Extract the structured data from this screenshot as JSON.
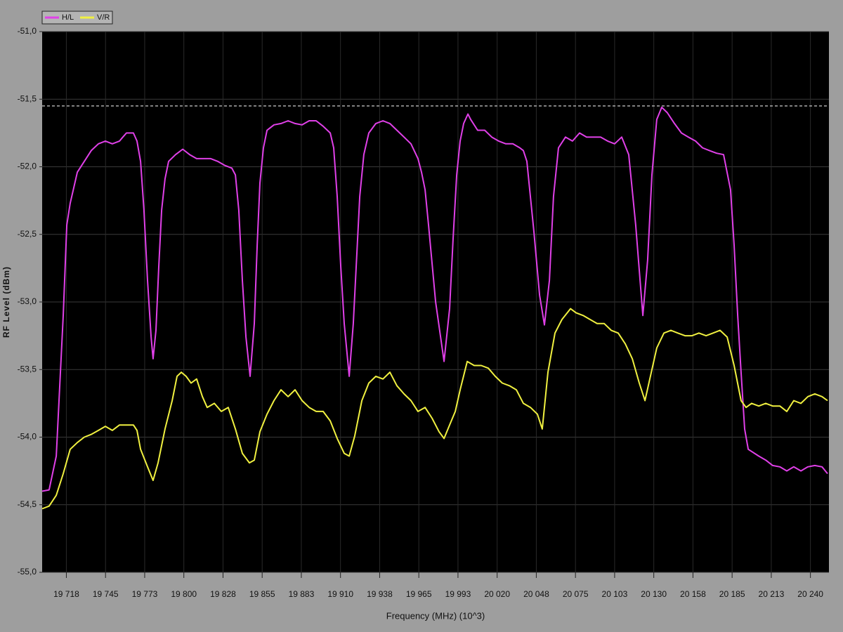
{
  "chart_data": {
    "type": "line",
    "x_label": "Frequency (MHz) (10^3)",
    "y_label": "RF Level (dBm)",
    "xlim": [
      19700.5,
      20253
    ],
    "ylim": [
      -55,
      -51
    ],
    "xticks": [
      {
        "value": 19717.5,
        "label": "19 718"
      },
      {
        "value": 19745,
        "label": "19 745"
      },
      {
        "value": 19772.5,
        "label": "19 773"
      },
      {
        "value": 19800,
        "label": "19 800"
      },
      {
        "value": 19827.5,
        "label": "19 828"
      },
      {
        "value": 19855,
        "label": "19 855"
      },
      {
        "value": 19882.5,
        "label": "19 883"
      },
      {
        "value": 19910,
        "label": "19 910"
      },
      {
        "value": 19937.5,
        "label": "19 938"
      },
      {
        "value": 19965,
        "label": "19 965"
      },
      {
        "value": 19992.5,
        "label": "19 993"
      },
      {
        "value": 20020,
        "label": "20 020"
      },
      {
        "value": 20047.5,
        "label": "20 048"
      },
      {
        "value": 20075,
        "label": "20 075"
      },
      {
        "value": 20102.5,
        "label": "20 103"
      },
      {
        "value": 20130,
        "label": "20 130"
      },
      {
        "value": 20157.5,
        "label": "20 158"
      },
      {
        "value": 20185,
        "label": "20 185"
      },
      {
        "value": 20212.5,
        "label": "20 213"
      },
      {
        "value": 20240,
        "label": "20 240"
      }
    ],
    "yticks": [
      {
        "value": -51,
        "label": "-51,0"
      },
      {
        "value": -51.5,
        "label": "-51,5"
      },
      {
        "value": -52,
        "label": "-52,0"
      },
      {
        "value": -52.5,
        "label": "-52,5"
      },
      {
        "value": -53,
        "label": "-53,0"
      },
      {
        "value": -53.5,
        "label": "-53,5"
      },
      {
        "value": -54,
        "label": "-54,0"
      },
      {
        "value": -54.5,
        "label": "-54,5"
      },
      {
        "value": -55,
        "label": "-55,0"
      }
    ],
    "grid": true,
    "reference_line": -51.55,
    "series": [
      {
        "name": "H/L",
        "color": "#e040e8",
        "x": [
          19700.5,
          19705.4,
          19710.4,
          19715.3,
          19717.8,
          19720.2,
          19725.2,
          19730.1,
          19735.0,
          19740.0,
          19744.9,
          19749.8,
          19754.8,
          19757.2,
          19759.7,
          19764.6,
          19767.1,
          19769.6,
          19772.0,
          19774.5,
          19777.0,
          19778.4,
          19780.4,
          19782.4,
          19784.4,
          19786.8,
          19789.3,
          19794.2,
          19799.2,
          19804.1,
          19809.0,
          19814.0,
          19818.9,
          19823.8,
          19828.8,
          19833.7,
          19836.2,
          19838.6,
          19841.1,
          19843.6,
          19846.5,
          19849.5,
          19851.5,
          19853.4,
          19855.9,
          19858.4,
          19863.3,
          19868.2,
          19873.2,
          19878.1,
          19883.0,
          19888.0,
          19892.9,
          19897.8,
          19902.8,
          19905.2,
          19907.7,
          19910.2,
          19912.6,
          19916.1,
          19919.0,
          19921.5,
          19923.5,
          19926.4,
          19929.9,
          19934.8,
          19939.8,
          19944.7,
          19949.6,
          19954.6,
          19959.5,
          19964.4,
          19966.9,
          19969.4,
          19971.8,
          19976.8,
          19982.7,
          19986.6,
          19989.1,
          19991.6,
          19994.0,
          19996.5,
          19999.5,
          20001.4,
          20006.3,
          20011.3,
          20016.2,
          20021.1,
          20026.1,
          20031.0,
          20035.9,
          20038.4,
          20040.9,
          20045.8,
          20049.8,
          20053.2,
          20056.7,
          20059.6,
          20063.1,
          20068.0,
          20072.9,
          20077.9,
          20082.8,
          20087.7,
          20092.7,
          20097.6,
          20102.5,
          20107.5,
          20112.4,
          20117.3,
          20122.3,
          20125.7,
          20128.7,
          20132.1,
          20135.6,
          20139.5,
          20144.5,
          20149.4,
          20154.3,
          20159.3,
          20164.2,
          20169.1,
          20174.1,
          20179.0,
          20183.9,
          20186.4,
          20188.9,
          20191.3,
          20193.8,
          20196.3,
          20203.7,
          20208.6,
          20213.5,
          20218.5,
          20223.4,
          20228.3,
          20233.3,
          20238.2,
          20243.1,
          20248.1,
          20252.0
        ],
        "values": [
          -54.4,
          -54.39,
          -54.14,
          -53.1,
          -52.43,
          -52.27,
          -52.04,
          -51.96,
          -51.88,
          -51.83,
          -51.81,
          -51.83,
          -51.81,
          -51.78,
          -51.75,
          -51.75,
          -51.81,
          -51.96,
          -52.32,
          -52.84,
          -53.26,
          -53.42,
          -53.21,
          -52.74,
          -52.32,
          -52.09,
          -51.96,
          -51.91,
          -51.87,
          -51.91,
          -51.94,
          -51.94,
          -51.94,
          -51.96,
          -51.99,
          -52.01,
          -52.06,
          -52.32,
          -52.84,
          -53.26,
          -53.55,
          -53.16,
          -52.58,
          -52.12,
          -51.86,
          -51.73,
          -51.69,
          -51.68,
          -51.66,
          -51.68,
          -51.69,
          -51.66,
          -51.66,
          -51.7,
          -51.75,
          -51.86,
          -52.22,
          -52.74,
          -53.16,
          -53.55,
          -53.16,
          -52.64,
          -52.22,
          -51.91,
          -51.75,
          -51.68,
          -51.66,
          -51.68,
          -51.73,
          -51.78,
          -51.83,
          -51.94,
          -52.04,
          -52.17,
          -52.43,
          -53.0,
          -53.44,
          -53.05,
          -52.53,
          -52.06,
          -51.81,
          -51.68,
          -51.61,
          -51.65,
          -51.73,
          -51.73,
          -51.78,
          -51.81,
          -51.83,
          -51.83,
          -51.86,
          -51.88,
          -51.96,
          -52.48,
          -52.95,
          -53.17,
          -52.84,
          -52.22,
          -51.86,
          -51.78,
          -51.81,
          -51.75,
          -51.78,
          -51.78,
          -51.78,
          -51.81,
          -51.83,
          -51.78,
          -51.91,
          -52.43,
          -53.1,
          -52.69,
          -52.06,
          -51.65,
          -51.56,
          -51.6,
          -51.68,
          -51.75,
          -51.78,
          -51.81,
          -51.86,
          -51.88,
          -51.9,
          -51.91,
          -52.17,
          -52.58,
          -53.1,
          -53.52,
          -53.94,
          -54.09,
          -54.14,
          -54.17,
          -54.21,
          -54.22,
          -54.25,
          -54.22,
          -54.25,
          -54.22,
          -54.21,
          -54.22,
          -54.27
        ]
      },
      {
        "name": "V/R",
        "color": "#f0f040",
        "x": [
          19700.5,
          19705.4,
          19710.4,
          19715.3,
          19720.2,
          19725.2,
          19730.1,
          19735.0,
          19740.0,
          19744.9,
          19749.8,
          19754.8,
          19759.7,
          19764.6,
          19767.1,
          19769.6,
          19774.5,
          19778.4,
          19781.9,
          19786.8,
          19791.8,
          19795.2,
          19798.2,
          19801.6,
          19805.1,
          19809.0,
          19813.0,
          19816.4,
          19821.4,
          19826.3,
          19831.2,
          19836.2,
          19841.1,
          19846.0,
          19849.5,
          19853.4,
          19858.4,
          19863.3,
          19868.2,
          19873.2,
          19878.1,
          19883.0,
          19888.0,
          19892.9,
          19897.8,
          19902.8,
          19907.7,
          19912.6,
          19916.1,
          19920.0,
          19925.0,
          19929.9,
          19934.8,
          19939.8,
          19944.7,
          19949.6,
          19954.6,
          19959.5,
          19964.4,
          19969.4,
          19974.3,
          19979.2,
          19982.7,
          19986.6,
          19990.6,
          19994.0,
          19999.0,
          20003.9,
          20008.8,
          20013.8,
          20018.7,
          20023.6,
          20028.6,
          20033.5,
          20038.4,
          20043.4,
          20048.3,
          20051.7,
          20055.7,
          20060.6,
          20065.5,
          20071.5,
          20075.4,
          20080.4,
          20085.3,
          20090.2,
          20095.2,
          20100.1,
          20105.0,
          20110.0,
          20114.9,
          20119.8,
          20123.8,
          20127.2,
          20132.1,
          20137.1,
          20142.0,
          20146.9,
          20151.9,
          20156.8,
          20161.7,
          20166.7,
          20171.6,
          20176.5,
          20181.5,
          20186.4,
          20191.3,
          20194.8,
          20198.7,
          20203.7,
          20208.6,
          20213.5,
          20218.5,
          20223.4,
          20228.3,
          20233.3,
          20238.2,
          20243.1,
          20248.1,
          20252.0
        ],
        "values": [
          -54.53,
          -54.51,
          -54.43,
          -54.27,
          -54.09,
          -54.04,
          -54.0,
          -53.98,
          -53.95,
          -53.92,
          -53.95,
          -53.91,
          -53.91,
          -53.91,
          -53.95,
          -54.09,
          -54.22,
          -54.32,
          -54.19,
          -53.94,
          -53.73,
          -53.55,
          -53.52,
          -53.55,
          -53.6,
          -53.57,
          -53.7,
          -53.78,
          -53.75,
          -53.81,
          -53.78,
          -53.94,
          -54.12,
          -54.19,
          -54.17,
          -53.96,
          -53.83,
          -53.73,
          -53.65,
          -53.7,
          -53.65,
          -53.73,
          -53.78,
          -53.81,
          -53.81,
          -53.88,
          -54.01,
          -54.12,
          -54.14,
          -53.99,
          -53.73,
          -53.6,
          -53.55,
          -53.57,
          -53.52,
          -53.62,
          -53.68,
          -53.73,
          -53.81,
          -53.78,
          -53.86,
          -53.96,
          -54.01,
          -53.91,
          -53.81,
          -53.65,
          -53.44,
          -53.47,
          -53.47,
          -53.49,
          -53.55,
          -53.6,
          -53.62,
          -53.65,
          -53.75,
          -53.78,
          -53.83,
          -53.94,
          -53.52,
          -53.23,
          -53.13,
          -53.05,
          -53.08,
          -53.1,
          -53.13,
          -53.16,
          -53.16,
          -53.21,
          -53.23,
          -53.31,
          -53.42,
          -53.6,
          -53.73,
          -53.57,
          -53.34,
          -53.23,
          -53.21,
          -53.23,
          -53.25,
          -53.25,
          -53.23,
          -53.25,
          -53.23,
          -53.21,
          -53.26,
          -53.47,
          -53.73,
          -53.78,
          -53.75,
          -53.77,
          -53.75,
          -53.77,
          -53.77,
          -53.81,
          -53.73,
          -53.75,
          -53.7,
          -53.68,
          -53.7,
          -53.73
        ]
      }
    ]
  }
}
